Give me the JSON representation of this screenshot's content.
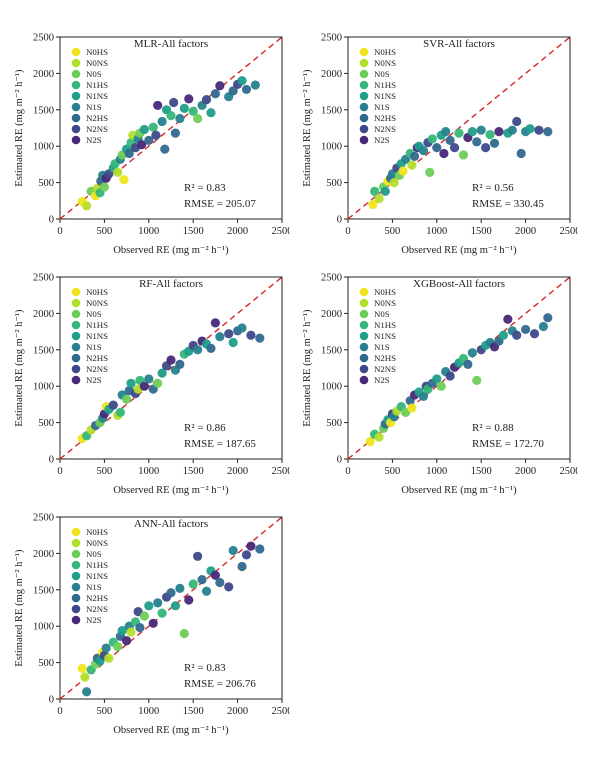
{
  "figure": {
    "ylabel": "Estimated RE (mg m⁻² h⁻¹)",
    "xlabel": "Observed RE (mg m⁻² h⁻¹)"
  },
  "legend": {
    "labels": [
      "N0HS",
      "N0NS",
      "N0S",
      "N1HS",
      "N1NS",
      "N1S",
      "N2HS",
      "N2NS",
      "N2S"
    ],
    "colors": [
      "#f1e51d",
      "#b5de2b",
      "#6ece58",
      "#35b779",
      "#1f9e89",
      "#26828e",
      "#31688e",
      "#3e4989",
      "#482878"
    ]
  },
  "chart_data": [
    {
      "type": "scatter",
      "title": "MLR-All factors",
      "r2_text": "R² = 0.83",
      "rmse_text": "RMSE = 205.07",
      "xlim": [
        0,
        2500
      ],
      "ylim": [
        0,
        2500
      ],
      "xticks": [
        0,
        500,
        1000,
        1500,
        2000,
        2500
      ],
      "yticks": [
        0,
        500,
        1000,
        1500,
        2000,
        2500
      ],
      "reference_line": "1:1 dashed red",
      "legend_position": "top-left",
      "points": [
        [
          250,
          240,
          0
        ],
        [
          300,
          180,
          1
        ],
        [
          350,
          380,
          2
        ],
        [
          400,
          320,
          0
        ],
        [
          420,
          420,
          1
        ],
        [
          450,
          360,
          3
        ],
        [
          460,
          520,
          6
        ],
        [
          480,
          600,
          5
        ],
        [
          500,
          440,
          2
        ],
        [
          520,
          560,
          8
        ],
        [
          550,
          620,
          7
        ],
        [
          600,
          700,
          4
        ],
        [
          620,
          760,
          3
        ],
        [
          650,
          640,
          1
        ],
        [
          680,
          820,
          5
        ],
        [
          700,
          880,
          2
        ],
        [
          720,
          540,
          0
        ],
        [
          750,
          960,
          4
        ],
        [
          780,
          900,
          6
        ],
        [
          800,
          1050,
          3
        ],
        [
          820,
          1150,
          1
        ],
        [
          850,
          980,
          7
        ],
        [
          880,
          1100,
          5
        ],
        [
          900,
          1180,
          2
        ],
        [
          920,
          1020,
          8
        ],
        [
          950,
          1230,
          4
        ],
        [
          1000,
          1080,
          6
        ],
        [
          1050,
          1260,
          3
        ],
        [
          1080,
          1150,
          7
        ],
        [
          1100,
          1560,
          8
        ],
        [
          1150,
          1340,
          5
        ],
        [
          1180,
          960,
          6
        ],
        [
          1200,
          1500,
          4
        ],
        [
          1250,
          1420,
          3
        ],
        [
          1280,
          1600,
          7
        ],
        [
          1300,
          1180,
          6
        ],
        [
          1350,
          1380,
          5
        ],
        [
          1400,
          1520,
          4
        ],
        [
          1450,
          1650,
          8
        ],
        [
          1500,
          1480,
          3
        ],
        [
          1550,
          1380,
          2
        ],
        [
          1600,
          1560,
          5
        ],
        [
          1650,
          1640,
          7
        ],
        [
          1700,
          1460,
          4
        ],
        [
          1750,
          1720,
          6
        ],
        [
          1800,
          1830,
          8
        ],
        [
          1900,
          1680,
          5
        ],
        [
          1950,
          1760,
          6
        ],
        [
          2000,
          1850,
          7
        ],
        [
          2050,
          1900,
          4
        ],
        [
          2100,
          1780,
          6
        ],
        [
          2200,
          1840,
          5
        ]
      ]
    },
    {
      "type": "scatter",
      "title": "SVR-All factors",
      "r2_text": "R² = 0.56",
      "rmse_text": "RMSE = 330.45",
      "xlim": [
        0,
        2500
      ],
      "ylim": [
        0,
        2500
      ],
      "xticks": [
        0,
        500,
        1000,
        1500,
        2000,
        2500
      ],
      "yticks": [
        0,
        500,
        1000,
        1500,
        2000,
        2500
      ],
      "reference_line": "1:1 dashed red",
      "legend_position": "top-left",
      "points": [
        [
          280,
          200,
          0
        ],
        [
          300,
          380,
          3
        ],
        [
          350,
          280,
          1
        ],
        [
          400,
          440,
          2
        ],
        [
          420,
          380,
          4
        ],
        [
          450,
          520,
          0
        ],
        [
          480,
          560,
          6
        ],
        [
          500,
          620,
          5
        ],
        [
          520,
          500,
          1
        ],
        [
          550,
          700,
          7
        ],
        [
          580,
          600,
          2
        ],
        [
          600,
          760,
          4
        ],
        [
          620,
          660,
          0
        ],
        [
          650,
          820,
          5
        ],
        [
          700,
          900,
          3
        ],
        [
          720,
          740,
          1
        ],
        [
          750,
          860,
          6
        ],
        [
          780,
          980,
          8
        ],
        [
          800,
          1000,
          4
        ],
        [
          850,
          940,
          5
        ],
        [
          900,
          1050,
          7
        ],
        [
          920,
          640,
          2
        ],
        [
          950,
          1100,
          3
        ],
        [
          1000,
          980,
          6
        ],
        [
          1050,
          1150,
          4
        ],
        [
          1080,
          900,
          8
        ],
        [
          1100,
          1200,
          5
        ],
        [
          1150,
          1080,
          6
        ],
        [
          1200,
          980,
          7
        ],
        [
          1250,
          1180,
          3
        ],
        [
          1300,
          880,
          2
        ],
        [
          1350,
          1120,
          8
        ],
        [
          1400,
          1200,
          4
        ],
        [
          1450,
          1060,
          6
        ],
        [
          1500,
          1220,
          5
        ],
        [
          1550,
          980,
          7
        ],
        [
          1600,
          1160,
          3
        ],
        [
          1650,
          1040,
          6
        ],
        [
          1700,
          1200,
          8
        ],
        [
          1800,
          1180,
          4
        ],
        [
          1850,
          1220,
          5
        ],
        [
          1900,
          1340,
          7
        ],
        [
          1950,
          900,
          6
        ],
        [
          2000,
          1200,
          5
        ],
        [
          2050,
          1240,
          4
        ],
        [
          2150,
          1220,
          7
        ],
        [
          2250,
          1200,
          6
        ]
      ]
    },
    {
      "type": "scatter",
      "title": "RF-All factors",
      "r2_text": "R² = 0.86",
      "rmse_text": "RMSE = 187.65",
      "xlim": [
        0,
        2500
      ],
      "ylim": [
        0,
        2500
      ],
      "xticks": [
        0,
        500,
        1000,
        1500,
        2000,
        2500
      ],
      "yticks": [
        0,
        500,
        1000,
        1500,
        2000,
        2500
      ],
      "reference_line": "1:1 dashed red",
      "legend_position": "top-left",
      "points": [
        [
          250,
          280,
          0
        ],
        [
          300,
          320,
          3
        ],
        [
          350,
          400,
          1
        ],
        [
          400,
          460,
          6
        ],
        [
          450,
          500,
          2
        ],
        [
          480,
          560,
          5
        ],
        [
          500,
          620,
          8
        ],
        [
          520,
          720,
          0
        ],
        [
          550,
          680,
          4
        ],
        [
          600,
          740,
          7
        ],
        [
          650,
          600,
          1
        ],
        [
          680,
          640,
          3
        ],
        [
          700,
          880,
          5
        ],
        [
          750,
          820,
          2
        ],
        [
          780,
          940,
          6
        ],
        [
          800,
          1040,
          4
        ],
        [
          850,
          900,
          7
        ],
        [
          880,
          960,
          1
        ],
        [
          900,
          1080,
          3
        ],
        [
          950,
          1000,
          8
        ],
        [
          1000,
          1100,
          5
        ],
        [
          1050,
          960,
          6
        ],
        [
          1100,
          1040,
          2
        ],
        [
          1150,
          1180,
          4
        ],
        [
          1200,
          1280,
          7
        ],
        [
          1250,
          1360,
          8
        ],
        [
          1300,
          1220,
          5
        ],
        [
          1350,
          1300,
          6
        ],
        [
          1400,
          1440,
          3
        ],
        [
          1450,
          1480,
          4
        ],
        [
          1500,
          1560,
          7
        ],
        [
          1550,
          1500,
          5
        ],
        [
          1600,
          1620,
          8
        ],
        [
          1650,
          1580,
          4
        ],
        [
          1700,
          1520,
          6
        ],
        [
          1750,
          1870,
          8
        ],
        [
          1800,
          1680,
          5
        ],
        [
          1900,
          1720,
          7
        ],
        [
          1950,
          1600,
          4
        ],
        [
          2000,
          1760,
          6
        ],
        [
          2050,
          1800,
          5
        ],
        [
          2150,
          1700,
          7
        ],
        [
          2250,
          1660,
          6
        ]
      ]
    },
    {
      "type": "scatter",
      "title": "XGBoost-All factors",
      "r2_text": "R² = 0.88",
      "rmse_text": "RMSE = 172.70",
      "xlim": [
        0,
        2500
      ],
      "ylim": [
        0,
        2500
      ],
      "xticks": [
        0,
        500,
        1000,
        1500,
        2000,
        2500
      ],
      "yticks": [
        0,
        500,
        1000,
        1500,
        2000,
        2500
      ],
      "reference_line": "1:1 dashed red",
      "legend_position": "top-left",
      "points": [
        [
          250,
          240,
          0
        ],
        [
          300,
          340,
          3
        ],
        [
          350,
          300,
          1
        ],
        [
          400,
          420,
          2
        ],
        [
          420,
          480,
          6
        ],
        [
          450,
          540,
          4
        ],
        [
          480,
          500,
          0
        ],
        [
          500,
          620,
          7
        ],
        [
          520,
          580,
          5
        ],
        [
          550,
          660,
          1
        ],
        [
          600,
          720,
          3
        ],
        [
          650,
          640,
          2
        ],
        [
          700,
          800,
          6
        ],
        [
          720,
          700,
          0
        ],
        [
          750,
          880,
          8
        ],
        [
          800,
          920,
          4
        ],
        [
          850,
          860,
          5
        ],
        [
          880,
          1000,
          7
        ],
        [
          900,
          960,
          3
        ],
        [
          950,
          1040,
          6
        ],
        [
          1000,
          1100,
          4
        ],
        [
          1050,
          1000,
          2
        ],
        [
          1100,
          1200,
          5
        ],
        [
          1150,
          1140,
          7
        ],
        [
          1200,
          1260,
          8
        ],
        [
          1250,
          1320,
          4
        ],
        [
          1300,
          1380,
          3
        ],
        [
          1350,
          1300,
          6
        ],
        [
          1400,
          1460,
          5
        ],
        [
          1450,
          1080,
          2
        ],
        [
          1500,
          1500,
          7
        ],
        [
          1550,
          1560,
          4
        ],
        [
          1600,
          1600,
          5
        ],
        [
          1650,
          1540,
          8
        ],
        [
          1700,
          1620,
          6
        ],
        [
          1750,
          1700,
          4
        ],
        [
          1800,
          1920,
          8
        ],
        [
          1850,
          1760,
          5
        ],
        [
          1900,
          1700,
          7
        ],
        [
          2000,
          1780,
          6
        ],
        [
          2100,
          1720,
          7
        ],
        [
          2200,
          1820,
          5
        ],
        [
          2250,
          1940,
          6
        ]
      ]
    },
    {
      "type": "scatter",
      "title": "ANN-All factors",
      "r2_text": "R² = 0.83",
      "rmse_text": "RMSE = 206.76",
      "xlim": [
        0,
        2500
      ],
      "ylim": [
        0,
        2500
      ],
      "xticks": [
        0,
        500,
        1000,
        1500,
        2000,
        2500
      ],
      "yticks": [
        0,
        500,
        1000,
        1500,
        2000,
        2500
      ],
      "reference_line": "1:1 dashed red",
      "legend_position": "top-left",
      "points": [
        [
          250,
          420,
          0
        ],
        [
          280,
          300,
          1
        ],
        [
          300,
          100,
          5
        ],
        [
          350,
          400,
          3
        ],
        [
          400,
          480,
          2
        ],
        [
          420,
          560,
          6
        ],
        [
          450,
          520,
          4
        ],
        [
          480,
          640,
          0
        ],
        [
          500,
          600,
          7
        ],
        [
          520,
          700,
          5
        ],
        [
          550,
          560,
          1
        ],
        [
          600,
          780,
          3
        ],
        [
          650,
          720,
          2
        ],
        [
          680,
          860,
          6
        ],
        [
          700,
          940,
          4
        ],
        [
          750,
          800,
          8
        ],
        [
          780,
          1000,
          5
        ],
        [
          800,
          920,
          1
        ],
        [
          850,
          1060,
          3
        ],
        [
          880,
          1200,
          7
        ],
        [
          900,
          980,
          6
        ],
        [
          950,
          1140,
          2
        ],
        [
          1000,
          1280,
          4
        ],
        [
          1050,
          1040,
          8
        ],
        [
          1100,
          1320,
          5
        ],
        [
          1150,
          1180,
          3
        ],
        [
          1200,
          1400,
          7
        ],
        [
          1250,
          1460,
          6
        ],
        [
          1300,
          1280,
          4
        ],
        [
          1350,
          1520,
          5
        ],
        [
          1400,
          900,
          2
        ],
        [
          1450,
          1360,
          8
        ],
        [
          1500,
          1580,
          3
        ],
        [
          1550,
          1960,
          7
        ],
        [
          1600,
          1640,
          6
        ],
        [
          1650,
          1480,
          5
        ],
        [
          1700,
          1760,
          4
        ],
        [
          1750,
          1700,
          8
        ],
        [
          1800,
          1600,
          6
        ],
        [
          1900,
          1540,
          7
        ],
        [
          1950,
          2040,
          5
        ],
        [
          2050,
          1820,
          6
        ],
        [
          2100,
          1980,
          7
        ],
        [
          2150,
          2100,
          8
        ],
        [
          2250,
          2060,
          6
        ]
      ]
    }
  ]
}
